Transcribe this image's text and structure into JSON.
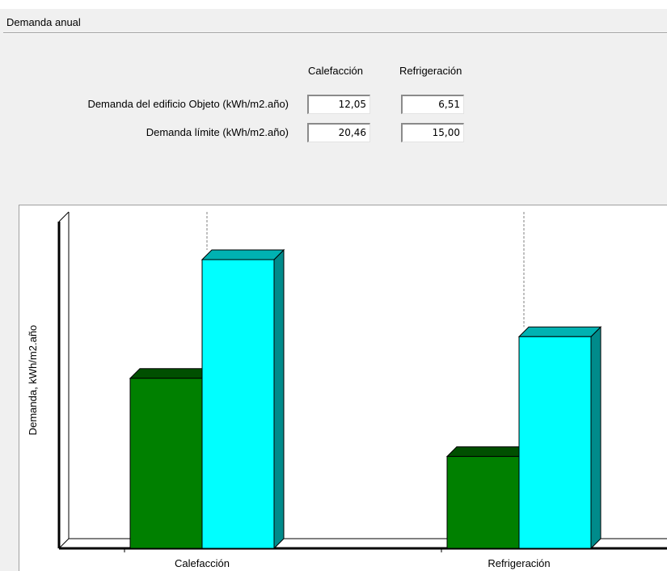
{
  "section_title": "Demanda anual",
  "table": {
    "columns": [
      "Calefacción",
      "Refrigeración"
    ],
    "rows": [
      {
        "label": "Demanda del edificio Objeto (kWh/m2.año)",
        "values": [
          "12,05",
          "6,51"
        ]
      },
      {
        "label": "Demanda límite (kWh/m2.año)",
        "values": [
          "20,46",
          "15,00"
        ]
      }
    ]
  },
  "colors": {
    "objeto": "#008000",
    "objeto_top": "#004f00",
    "objeto_side": "#006400",
    "limite": "#00ffff",
    "limite_top": "#00b2b2",
    "limite_side": "#008b8b"
  },
  "chart_data": {
    "type": "bar",
    "categories": [
      "Calefacción",
      "Refrigeración"
    ],
    "series": [
      {
        "values": [
          12.05,
          6.51
        ]
      },
      {
        "values": [
          20.46,
          15.0
        ]
      }
    ],
    "xlabel": "",
    "ylabel": "Demanda, kWh/m2.año",
    "grid": false,
    "style": "3d"
  }
}
